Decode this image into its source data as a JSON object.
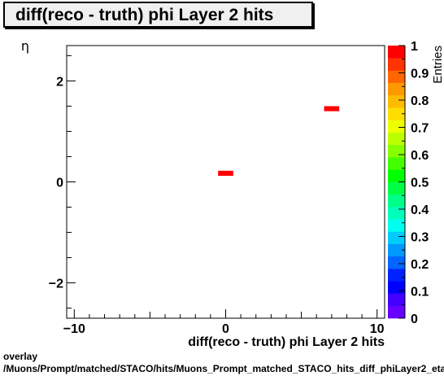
{
  "chart_data": {
    "type": "heatmap",
    "title": "diff(reco - truth) phi Layer 2 hits",
    "xlabel": "diff(reco - truth) phi Layer 2 hits",
    "ylabel": "η",
    "zlabel": "Entries",
    "xlim": [
      -10.5,
      10.5
    ],
    "ylim": [
      -2.7,
      2.7
    ],
    "zlim": [
      0,
      1
    ],
    "x_ticks": [
      -10,
      0,
      10
    ],
    "y_ticks": [
      -2,
      0,
      2
    ],
    "z_ticks": [
      0,
      0.1,
      0.2,
      0.3,
      0.4,
      0.5,
      0.6,
      0.7,
      0.8,
      0.9,
      1
    ],
    "bins": [
      {
        "x0": -0.5,
        "x1": 0.5,
        "y0": 0.12,
        "y1": 0.22,
        "value": 1
      },
      {
        "x0": 6.5,
        "x1": 7.5,
        "y0": 1.4,
        "y1": 1.5,
        "value": 1
      }
    ]
  },
  "footer": {
    "line1": "overlay",
    "line2": "/Muons/Prompt/matched/STACO/hits/Muons_Prompt_matched_STACO_hits_diff_phiLayer2_eta"
  },
  "colors": {
    "palette": [
      "#6600ff",
      "#4400ff",
      "#0000ff",
      "#0022ff",
      "#0066ff",
      "#0099ff",
      "#00ccff",
      "#00ffee",
      "#00ffbb",
      "#00ff88",
      "#00ff44",
      "#00ff00",
      "#44ff00",
      "#88ff00",
      "#bbff00",
      "#eeff00",
      "#ffdd00",
      "#ffbb00",
      "#ff9900",
      "#ff6600",
      "#ff3300",
      "#ff0000"
    ]
  }
}
